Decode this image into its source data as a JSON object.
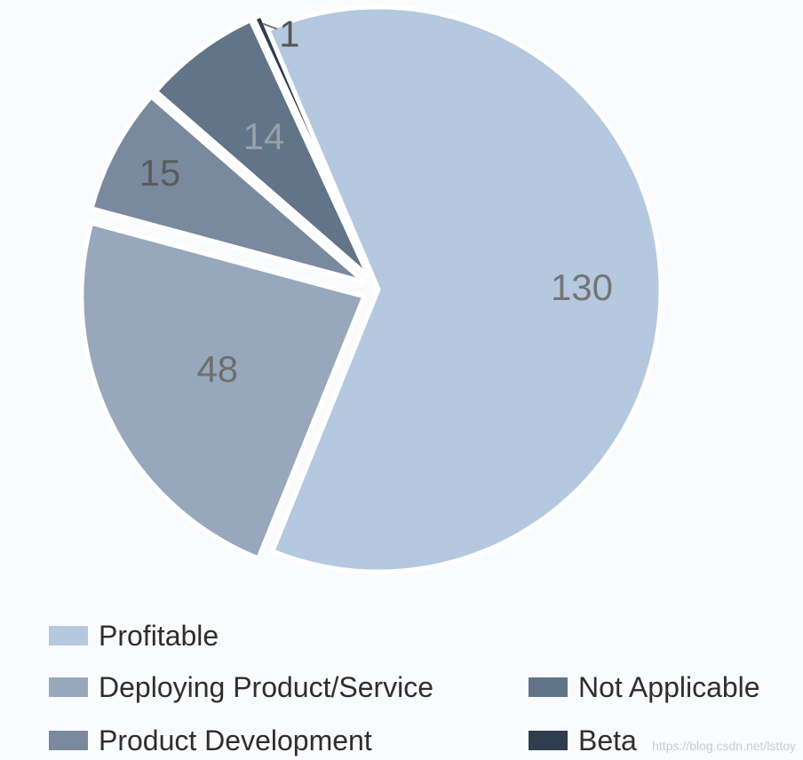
{
  "chart_data": {
    "type": "pie",
    "slices": [
      {
        "label": "Profitable",
        "value": 130,
        "color": "#b4c9e0",
        "label_color": "#757575"
      },
      {
        "label": "Deploying Product/Service",
        "value": 48,
        "color": "#97a8bc",
        "label_color": "#6e6e6e"
      },
      {
        "label": "Product Development",
        "value": 15,
        "color": "#7a8a9e",
        "label_color": "#5b5b5b"
      },
      {
        "label": "Not Applicable",
        "value": 14,
        "color": "#627488",
        "label_color": "#9aa0a8"
      },
      {
        "label": "Beta",
        "value": 1,
        "color": "#2f3e4f",
        "label_color": "#555555"
      }
    ],
    "start_angle_deg": -23,
    "direction": "clockwise",
    "legend_position": "bottom"
  },
  "legend": [
    {
      "label": "Profitable",
      "color": "#b4c9e0"
    },
    {
      "label": "Deploying Product/Service",
      "color": "#97a8bc"
    },
    {
      "label": "Not Applicable",
      "color": "#627488"
    },
    {
      "label": "Product Development",
      "color": "#7a8a9e"
    },
    {
      "label": "Beta",
      "color": "#2f3e4f"
    }
  ],
  "watermark": "https://blog.csdn.net/lsttoy"
}
